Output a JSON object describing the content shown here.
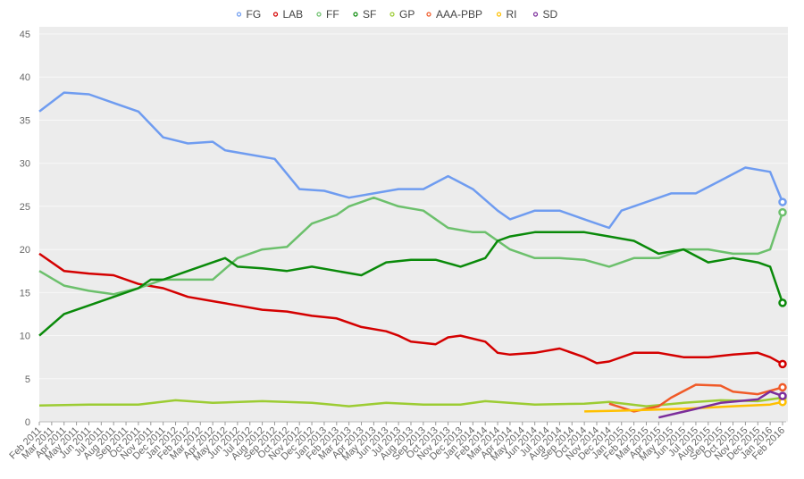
{
  "chart_data": {
    "type": "line",
    "title": "",
    "xlabel": "",
    "ylabel": "",
    "ylim": [
      0,
      45
    ],
    "yticks": [
      0,
      5,
      10,
      15,
      20,
      25,
      30,
      35,
      40,
      45
    ],
    "xlim": [
      "2011-02",
      "2016-02"
    ],
    "grid": true,
    "legend_position": "top",
    "series": [
      {
        "name": "FG",
        "color": "#6f9cf0",
        "points": [
          [
            "2011-02",
            36
          ],
          [
            "2011-04",
            38.2
          ],
          [
            "2011-06",
            38
          ],
          [
            "2011-08",
            37
          ],
          [
            "2011-10",
            36
          ],
          [
            "2011-12",
            33
          ],
          [
            "2012-02",
            32.3
          ],
          [
            "2012-04",
            32.5
          ],
          [
            "2012-05",
            31.5
          ],
          [
            "2012-09",
            30.5
          ],
          [
            "2012-11",
            27
          ],
          [
            "2013-01",
            26.8
          ],
          [
            "2013-03",
            26
          ],
          [
            "2013-05",
            26.5
          ],
          [
            "2013-07",
            27
          ],
          [
            "2013-09",
            27
          ],
          [
            "2013-11",
            28.5
          ],
          [
            "2014-01",
            27
          ],
          [
            "2014-03",
            24.5
          ],
          [
            "2014-04",
            23.5
          ],
          [
            "2014-06",
            24.5
          ],
          [
            "2014-08",
            24.5
          ],
          [
            "2014-10",
            23.5
          ],
          [
            "2014-12",
            22.5
          ],
          [
            "2015-01",
            24.5
          ],
          [
            "2015-03",
            25.5
          ],
          [
            "2015-05",
            26.5
          ],
          [
            "2015-07",
            26.5
          ],
          [
            "2015-09",
            28
          ],
          [
            "2015-11",
            29.5
          ],
          [
            "2016-01",
            29
          ],
          [
            "2016-02",
            25.5
          ]
        ]
      },
      {
        "name": "LAB",
        "color": "#d40000",
        "points": [
          [
            "2011-02",
            19.5
          ],
          [
            "2011-04",
            17.5
          ],
          [
            "2011-06",
            17.2
          ],
          [
            "2011-08",
            17
          ],
          [
            "2011-10",
            16
          ],
          [
            "2011-12",
            15.5
          ],
          [
            "2012-01",
            15
          ],
          [
            "2012-02",
            14.5
          ],
          [
            "2012-04",
            14
          ],
          [
            "2012-06",
            13.5
          ],
          [
            "2012-08",
            13
          ],
          [
            "2012-10",
            12.8
          ],
          [
            "2012-12",
            12.3
          ],
          [
            "2013-02",
            12
          ],
          [
            "2013-04",
            11
          ],
          [
            "2013-06",
            10.5
          ],
          [
            "2013-07",
            10
          ],
          [
            "2013-08",
            9.3
          ],
          [
            "2013-10",
            9
          ],
          [
            "2013-11",
            9.8
          ],
          [
            "2013-12",
            10
          ],
          [
            "2014-02",
            9.3
          ],
          [
            "2014-03",
            8
          ],
          [
            "2014-04",
            7.8
          ],
          [
            "2014-06",
            8
          ],
          [
            "2014-08",
            8.5
          ],
          [
            "2014-10",
            7.5
          ],
          [
            "2014-11",
            6.8
          ],
          [
            "2014-12",
            7
          ],
          [
            "2015-02",
            8
          ],
          [
            "2015-04",
            8
          ],
          [
            "2015-06",
            7.5
          ],
          [
            "2015-08",
            7.5
          ],
          [
            "2015-10",
            7.8
          ],
          [
            "2015-12",
            8
          ],
          [
            "2016-01",
            7.5
          ],
          [
            "2016-02",
            6.7
          ]
        ]
      },
      {
        "name": "FF",
        "color": "#6cc06c",
        "points": [
          [
            "2011-02",
            17.5
          ],
          [
            "2011-04",
            15.8
          ],
          [
            "2011-06",
            15.2
          ],
          [
            "2011-08",
            14.8
          ],
          [
            "2011-10",
            15.5
          ],
          [
            "2011-12",
            16.5
          ],
          [
            "2012-02",
            16.5
          ],
          [
            "2012-04",
            16.5
          ],
          [
            "2012-06",
            19
          ],
          [
            "2012-08",
            20
          ],
          [
            "2012-10",
            20.3
          ],
          [
            "2012-12",
            23
          ],
          [
            "2013-02",
            24
          ],
          [
            "2013-03",
            25
          ],
          [
            "2013-05",
            26
          ],
          [
            "2013-07",
            25
          ],
          [
            "2013-09",
            24.5
          ],
          [
            "2013-11",
            22.5
          ],
          [
            "2014-01",
            22
          ],
          [
            "2014-02",
            22
          ],
          [
            "2014-03",
            21
          ],
          [
            "2014-04",
            20
          ],
          [
            "2014-06",
            19
          ],
          [
            "2014-08",
            19
          ],
          [
            "2014-10",
            18.8
          ],
          [
            "2014-12",
            18
          ],
          [
            "2015-02",
            19
          ],
          [
            "2015-04",
            19
          ],
          [
            "2015-06",
            20
          ],
          [
            "2015-08",
            20
          ],
          [
            "2015-10",
            19.5
          ],
          [
            "2015-12",
            19.5
          ],
          [
            "2016-01",
            20
          ],
          [
            "2016-02",
            24.3
          ]
        ]
      },
      {
        "name": "SF",
        "color": "#0a8a0a",
        "points": [
          [
            "2011-02",
            10
          ],
          [
            "2011-04",
            12.5
          ],
          [
            "2011-06",
            13.5
          ],
          [
            "2011-08",
            14.5
          ],
          [
            "2011-10",
            15.5
          ],
          [
            "2011-11",
            16.5
          ],
          [
            "2011-12",
            16.5
          ],
          [
            "2012-02",
            17.5
          ],
          [
            "2012-04",
            18.5
          ],
          [
            "2012-05",
            19
          ],
          [
            "2012-06",
            18
          ],
          [
            "2012-08",
            17.8
          ],
          [
            "2012-10",
            17.5
          ],
          [
            "2012-12",
            18
          ],
          [
            "2013-02",
            17.5
          ],
          [
            "2013-04",
            17
          ],
          [
            "2013-06",
            18.5
          ],
          [
            "2013-08",
            18.8
          ],
          [
            "2013-10",
            18.8
          ],
          [
            "2013-12",
            18
          ],
          [
            "2014-02",
            19
          ],
          [
            "2014-03",
            21
          ],
          [
            "2014-04",
            21.5
          ],
          [
            "2014-06",
            22
          ],
          [
            "2014-08",
            22
          ],
          [
            "2014-10",
            22
          ],
          [
            "2014-12",
            21.5
          ],
          [
            "2015-02",
            21
          ],
          [
            "2015-04",
            19.5
          ],
          [
            "2015-06",
            20
          ],
          [
            "2015-08",
            18.5
          ],
          [
            "2015-10",
            19
          ],
          [
            "2015-12",
            18.5
          ],
          [
            "2016-01",
            18
          ],
          [
            "2016-02",
            13.8
          ]
        ]
      },
      {
        "name": "GP",
        "color": "#9ccc33",
        "points": [
          [
            "2011-02",
            1.9
          ],
          [
            "2011-06",
            2
          ],
          [
            "2011-10",
            2
          ],
          [
            "2012-01",
            2.5
          ],
          [
            "2012-04",
            2.2
          ],
          [
            "2012-08",
            2.4
          ],
          [
            "2012-12",
            2.2
          ],
          [
            "2013-03",
            1.8
          ],
          [
            "2013-06",
            2.2
          ],
          [
            "2013-09",
            2
          ],
          [
            "2013-12",
            2
          ],
          [
            "2014-02",
            2.4
          ],
          [
            "2014-06",
            2
          ],
          [
            "2014-10",
            2.1
          ],
          [
            "2014-12",
            2.3
          ],
          [
            "2015-03",
            1.8
          ],
          [
            "2015-06",
            2.2
          ],
          [
            "2015-09",
            2.5
          ],
          [
            "2015-12",
            2.4
          ],
          [
            "2016-02",
            2.8
          ]
        ]
      },
      {
        "name": "AAA-PBP",
        "color": "#f05a28",
        "points": [
          [
            "2014-12",
            2.1
          ],
          [
            "2015-02",
            1.2
          ],
          [
            "2015-04",
            1.8
          ],
          [
            "2015-05",
            2.8
          ],
          [
            "2015-07",
            4.3
          ],
          [
            "2015-09",
            4.2
          ],
          [
            "2015-10",
            3.5
          ],
          [
            "2015-12",
            3.2
          ],
          [
            "2016-02",
            4.0
          ]
        ]
      },
      {
        "name": "RI",
        "color": "#ffc000",
        "points": [
          [
            "2014-10",
            1.2
          ],
          [
            "2015-01",
            1.3
          ],
          [
            "2015-06",
            1.5
          ],
          [
            "2015-10",
            1.8
          ],
          [
            "2016-01",
            2.0
          ],
          [
            "2016-02",
            2.3
          ]
        ]
      },
      {
        "name": "SD",
        "color": "#7b2d9b",
        "points": [
          [
            "2015-04",
            0.5
          ],
          [
            "2015-07",
            1.5
          ],
          [
            "2015-09",
            2.2
          ],
          [
            "2015-12",
            2.6
          ],
          [
            "2016-01",
            3.5
          ],
          [
            "2016-02",
            3.0
          ]
        ]
      }
    ]
  }
}
